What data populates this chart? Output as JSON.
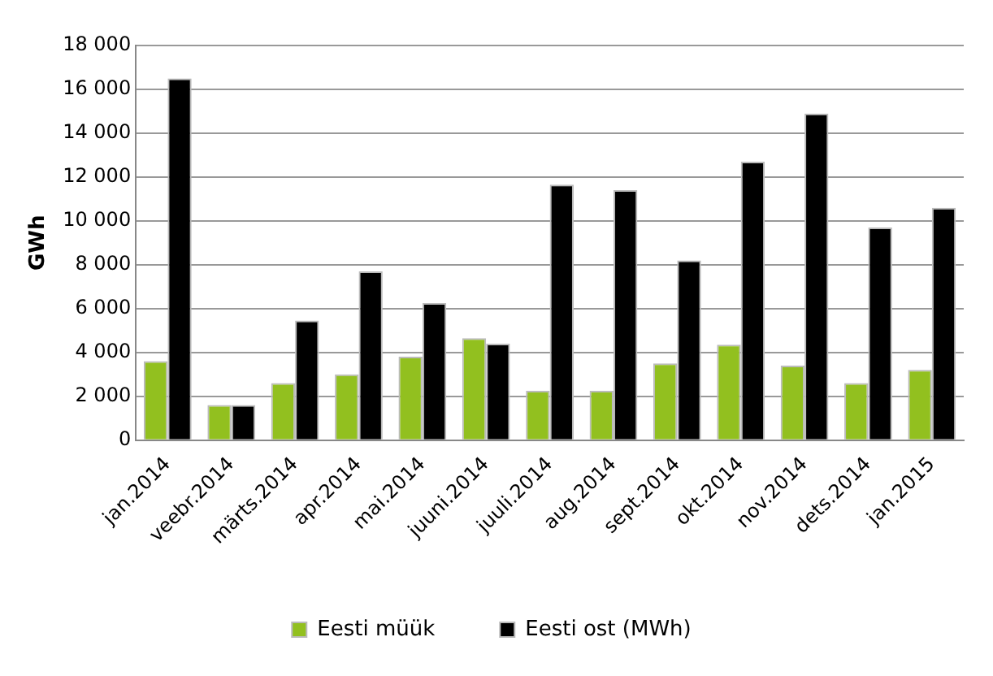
{
  "chart_data": {
    "type": "bar",
    "ylabel": "GWh",
    "categories": [
      "jan.2014",
      "veebr.2014",
      "märts.2014",
      "apr.2014",
      "mai.2014",
      "juuni.2014",
      "juuli.2014",
      "aug.2014",
      "sept.2014",
      "okt.2014",
      "nov.2014",
      "dets.2014",
      "jan.2015"
    ],
    "series": [
      {
        "name": "Eesti müük",
        "color": "#92c01f",
        "values": [
          3600,
          1600,
          2600,
          3000,
          3800,
          4650,
          2250,
          2250,
          3500,
          4350,
          3400,
          2600,
          3200
        ]
      },
      {
        "name": "Eesti ost (MWh)",
        "color": "#000000",
        "values": [
          16500,
          1600,
          5450,
          7700,
          6250,
          4400,
          11650,
          11400,
          8200,
          12700,
          14900,
          9700,
          10600
        ]
      }
    ],
    "ylim": [
      0,
      18000
    ],
    "yticks": [
      {
        "value": 0,
        "label": "0"
      },
      {
        "value": 2000,
        "label": "2 000"
      },
      {
        "value": 4000,
        "label": "4 000"
      },
      {
        "value": 6000,
        "label": "6 000"
      },
      {
        "value": 8000,
        "label": "8 000"
      },
      {
        "value": 10000,
        "label": "10 000"
      },
      {
        "value": 12000,
        "label": "12 000"
      },
      {
        "value": 14000,
        "label": "14 000"
      },
      {
        "value": 16000,
        "label": "16 000"
      },
      {
        "value": 18000,
        "label": "18 000"
      }
    ],
    "grid": "y",
    "legend": "bottom"
  }
}
